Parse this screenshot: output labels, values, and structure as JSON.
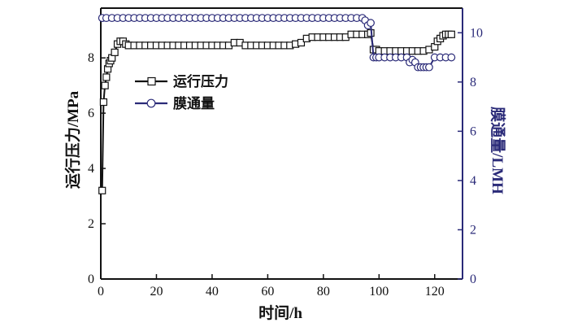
{
  "chart_data": {
    "type": "line",
    "xlabel": "时间/h",
    "xlim": [
      0,
      130
    ],
    "xticks": [
      0,
      20,
      40,
      60,
      80,
      100,
      120
    ],
    "y_left": {
      "label": "运行压力/MPa",
      "lim": [
        0,
        9.8
      ],
      "ticks": [
        0,
        2,
        4,
        6,
        8
      ]
    },
    "y_right": {
      "label": "膜通量/LMH",
      "lim": [
        0,
        11
      ],
      "ticks": [
        0,
        2,
        4,
        6,
        8,
        10
      ]
    },
    "legend": {
      "position": "upper-left"
    },
    "series": [
      {
        "name": "运行压力",
        "axis": "left",
        "color": "#111111",
        "marker": "square",
        "x": [
          0.5,
          1,
          1.5,
          2,
          2.5,
          3,
          3.5,
          4,
          5,
          6,
          7,
          8,
          9,
          10,
          12,
          14,
          16,
          18,
          20,
          22,
          24,
          26,
          28,
          30,
          32,
          34,
          36,
          38,
          40,
          42,
          44,
          46,
          48,
          50,
          52,
          54,
          56,
          58,
          60,
          62,
          64,
          66,
          68,
          70,
          72,
          74,
          76,
          78,
          80,
          82,
          84,
          86,
          88,
          90,
          92,
          94,
          96,
          97,
          98,
          99,
          100,
          102,
          104,
          106,
          108,
          110,
          112,
          114,
          116,
          118,
          120,
          121,
          122,
          123,
          124,
          125,
          126
        ],
        "values": [
          3.2,
          6.4,
          7.0,
          7.3,
          7.6,
          7.8,
          7.9,
          8.0,
          8.2,
          8.5,
          8.6,
          8.6,
          8.5,
          8.45,
          8.45,
          8.45,
          8.45,
          8.45,
          8.45,
          8.45,
          8.45,
          8.45,
          8.45,
          8.45,
          8.45,
          8.45,
          8.45,
          8.45,
          8.45,
          8.45,
          8.45,
          8.45,
          8.55,
          8.55,
          8.45,
          8.45,
          8.45,
          8.45,
          8.45,
          8.45,
          8.45,
          8.45,
          8.45,
          8.5,
          8.55,
          8.7,
          8.75,
          8.75,
          8.75,
          8.75,
          8.75,
          8.75,
          8.75,
          8.85,
          8.85,
          8.85,
          8.85,
          8.9,
          8.3,
          8.3,
          8.25,
          8.25,
          8.25,
          8.25,
          8.25,
          8.25,
          8.25,
          8.25,
          8.25,
          8.3,
          8.4,
          8.6,
          8.7,
          8.8,
          8.85,
          8.85,
          8.85
        ]
      },
      {
        "name": "膜通量",
        "axis": "right",
        "color": "#2a2a78",
        "marker": "circle",
        "x": [
          0.5,
          2,
          4,
          6,
          8,
          10,
          12,
          14,
          16,
          18,
          20,
          22,
          24,
          26,
          28,
          30,
          32,
          34,
          36,
          38,
          40,
          42,
          44,
          46,
          48,
          50,
          52,
          54,
          56,
          58,
          60,
          62,
          64,
          66,
          68,
          70,
          72,
          74,
          76,
          78,
          80,
          82,
          84,
          86,
          88,
          90,
          92,
          94,
          95,
          96,
          97,
          98,
          99,
          100,
          102,
          104,
          106,
          108,
          110,
          111,
          112,
          113,
          114,
          115,
          116,
          117,
          118,
          120,
          122,
          124,
          126
        ],
        "values": [
          10.6,
          10.6,
          10.6,
          10.6,
          10.6,
          10.6,
          10.6,
          10.6,
          10.6,
          10.6,
          10.6,
          10.6,
          10.6,
          10.6,
          10.6,
          10.6,
          10.6,
          10.6,
          10.6,
          10.6,
          10.6,
          10.6,
          10.6,
          10.6,
          10.6,
          10.6,
          10.6,
          10.6,
          10.6,
          10.6,
          10.6,
          10.6,
          10.6,
          10.6,
          10.6,
          10.6,
          10.6,
          10.6,
          10.6,
          10.6,
          10.6,
          10.6,
          10.6,
          10.6,
          10.6,
          10.6,
          10.6,
          10.6,
          10.5,
          10.3,
          10.4,
          9.0,
          9.0,
          9.0,
          9.0,
          9.0,
          9.0,
          9.0,
          9.0,
          8.8,
          8.9,
          8.8,
          8.6,
          8.6,
          8.6,
          8.6,
          8.6,
          9.0,
          9.0,
          9.0,
          9.0
        ]
      }
    ]
  }
}
